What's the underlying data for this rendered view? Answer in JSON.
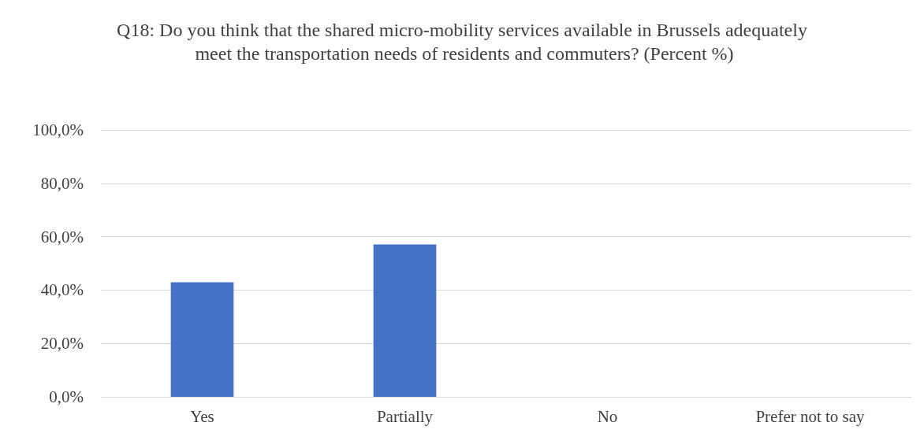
{
  "chart_data": {
    "type": "bar",
    "title": "Q18: Do you think that the shared micro-mobility services available in Brussels adequately meet the transportation needs of residents and commuters? (Percent %)",
    "categories": [
      "Yes",
      "Partially",
      "No",
      "Prefer not to say"
    ],
    "values": [
      42.9,
      57.1,
      0,
      0
    ],
    "color": "#4472c4",
    "ylim": [
      0,
      100
    ],
    "yticks": [
      {
        "value": 0,
        "label": "0,0%"
      },
      {
        "value": 20,
        "label": "20,0%"
      },
      {
        "value": 40,
        "label": "40,0%"
      },
      {
        "value": 60,
        "label": "60,0%"
      },
      {
        "value": 80,
        "label": "80,0%"
      },
      {
        "value": 100,
        "label": "100,0%"
      }
    ],
    "grid": true
  }
}
